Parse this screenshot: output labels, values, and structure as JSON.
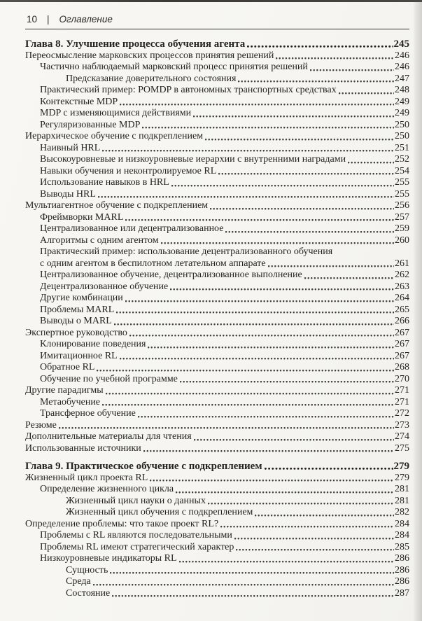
{
  "header": {
    "page_number": "10",
    "separator": "|",
    "title": "Оглавление"
  },
  "toc": {
    "rows": [
      {
        "type": "chapter",
        "level": 0,
        "text": "Глава 8. Улучшение процесса обучения агента",
        "page": "245"
      },
      {
        "type": "entry",
        "level": 0,
        "text": "Переосмысление марковских процессов принятия решений",
        "page": "246"
      },
      {
        "type": "entry",
        "level": 1,
        "text": "Частично наблюдаемый марковский процесс принятия решений",
        "page": "246"
      },
      {
        "type": "entry",
        "level": 2,
        "text": "Предсказание доверительного состояния",
        "page": "247"
      },
      {
        "type": "entry",
        "level": 1,
        "text": "Практический пример: POMDP в автономных транспортных средствах",
        "page": "248"
      },
      {
        "type": "entry",
        "level": 1,
        "text": "Контекстные MDP",
        "page": "249"
      },
      {
        "type": "entry",
        "level": 1,
        "text": "MDP с изменяющимися действиями",
        "page": "249"
      },
      {
        "type": "entry",
        "level": 1,
        "text": "Регуляризованные MDP",
        "page": "250"
      },
      {
        "type": "entry",
        "level": 0,
        "text": "Иерархическое обучение с подкреплением",
        "page": "250"
      },
      {
        "type": "entry",
        "level": 1,
        "text": "Наивный HRL",
        "page": "251"
      },
      {
        "type": "entry",
        "level": 1,
        "text": "Высокоуровневые и низкоуровневые иерархии с внутренними наградами",
        "page": "252"
      },
      {
        "type": "entry",
        "level": 1,
        "text": "Навыки обучения и неконтролируемое RL",
        "page": "254"
      },
      {
        "type": "entry",
        "level": 1,
        "text": "Использование навыков в HRL",
        "page": "255"
      },
      {
        "type": "entry",
        "level": 1,
        "text": "Выводы HRL",
        "page": "255"
      },
      {
        "type": "entry",
        "level": 0,
        "text": "Мультиагентное обучение с подкреплением",
        "page": "256"
      },
      {
        "type": "entry",
        "level": 1,
        "text": "Фреймворки MARL",
        "page": "257"
      },
      {
        "type": "entry",
        "level": 1,
        "text": "Централизованное или децентрализованное",
        "page": "259"
      },
      {
        "type": "entry",
        "level": 1,
        "text": "Алгоритмы с одним агентом",
        "page": "260"
      },
      {
        "type": "entry",
        "level": 1,
        "text": "Практический пример: использование децентрализованного обучения",
        "page": "",
        "nodots": true
      },
      {
        "type": "entry",
        "level": 1,
        "text": "с одним агентом в беспилотном летательном аппарате",
        "page": "261"
      },
      {
        "type": "entry",
        "level": 1,
        "text": "Централизованное обучение, децентрализованное выполнение",
        "page": "262"
      },
      {
        "type": "entry",
        "level": 1,
        "text": "Децентрализованное обучение",
        "page": "263"
      },
      {
        "type": "entry",
        "level": 1,
        "text": "Другие комбинации",
        "page": "264"
      },
      {
        "type": "entry",
        "level": 1,
        "text": "Проблемы MARL",
        "page": "265"
      },
      {
        "type": "entry",
        "level": 1,
        "text": "Выводы о MARL",
        "page": "266"
      },
      {
        "type": "entry",
        "level": 0,
        "text": "Экспертное руководство",
        "page": "267"
      },
      {
        "type": "entry",
        "level": 1,
        "text": "Клонирование поведения",
        "page": "267"
      },
      {
        "type": "entry",
        "level": 1,
        "text": "Имитационное RL",
        "page": "267"
      },
      {
        "type": "entry",
        "level": 1,
        "text": "Обратное RL",
        "page": "268"
      },
      {
        "type": "entry",
        "level": 1,
        "text": "Обучение по учебной программе",
        "page": "270"
      },
      {
        "type": "entry",
        "level": 0,
        "text": "Другие парадигмы",
        "page": "271"
      },
      {
        "type": "entry",
        "level": 1,
        "text": "Метаобучение",
        "page": "271"
      },
      {
        "type": "entry",
        "level": 1,
        "text": "Трансферное обучение",
        "page": "272"
      },
      {
        "type": "entry",
        "level": 0,
        "text": "Резюме",
        "page": "273"
      },
      {
        "type": "entry",
        "level": 0,
        "text": "Дополнительные материалы для чтения",
        "page": "274"
      },
      {
        "type": "entry",
        "level": 0,
        "text": "Использованные источники",
        "page": "275"
      },
      {
        "type": "chapter",
        "level": 0,
        "text": "Глава 9. Практическое обучение с подкреплением",
        "page": "279"
      },
      {
        "type": "entry",
        "level": 0,
        "text": "Жизненный цикл проекта RL",
        "page": "279"
      },
      {
        "type": "entry",
        "level": 1,
        "text": "Определение жизненного цикла",
        "page": "281"
      },
      {
        "type": "entry",
        "level": 2,
        "text": "Жизненный цикл науки о данных",
        "page": "281"
      },
      {
        "type": "entry",
        "level": 2,
        "text": "Жизненный цикл обучения с подкреплением",
        "page": "282"
      },
      {
        "type": "entry",
        "level": 0,
        "text": "Определение проблемы: что такое проект RL?",
        "page": "284"
      },
      {
        "type": "entry",
        "level": 1,
        "text": "Проблемы с RL являются последовательными",
        "page": "284"
      },
      {
        "type": "entry",
        "level": 1,
        "text": "Проблемы RL имеют стратегический характер",
        "page": "285"
      },
      {
        "type": "entry",
        "level": 1,
        "text": "Низкоуровневые индикаторы RL",
        "page": "286"
      },
      {
        "type": "entry",
        "level": 2,
        "text": "Сущность",
        "page": "286"
      },
      {
        "type": "entry",
        "level": 2,
        "text": "Среда",
        "page": "286"
      },
      {
        "type": "entry",
        "level": 2,
        "text": "Состояние",
        "page": "287"
      }
    ]
  }
}
